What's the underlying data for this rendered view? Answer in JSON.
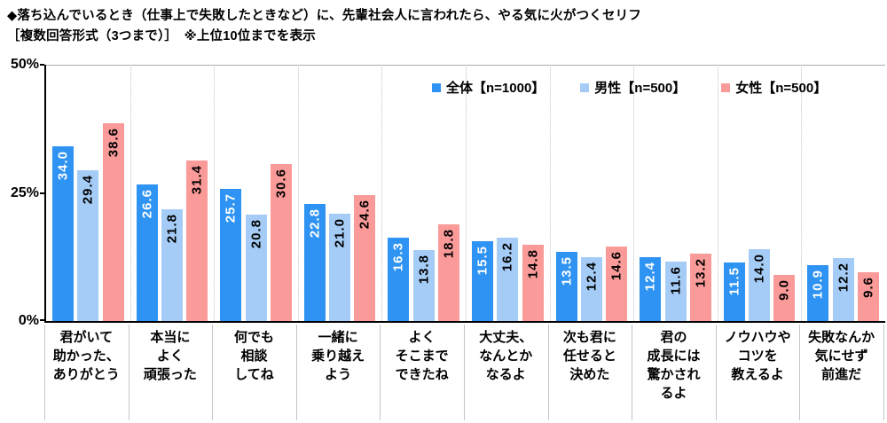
{
  "chart_data": {
    "type": "bar",
    "title": "◆落ち込んでいるとき（仕事上で失敗したときなど）に、先輩社会人に言われたら、やる気に火がつくセリフ",
    "subtitle": "［複数回答形式（3つまで）］　※上位10位までを表示",
    "ylim": [
      0,
      50
    ],
    "yticks": [
      "50%",
      "25%",
      "0%"
    ],
    "grid": "top 50% gridline only; dotted vertical separators between categories",
    "legend_position": "top-right inside plot",
    "value_label_format": "one decimal, rotated 90° reading bottom-to-top, inside bar top",
    "categories": [
      [
        "君がいて",
        "助かった、",
        "ありがとう"
      ],
      [
        "本当に",
        "よく",
        "頑張った"
      ],
      [
        "何でも",
        "相談",
        "してね"
      ],
      [
        "一緒に",
        "乗り越え",
        "よう"
      ],
      [
        "よく",
        "そこまで",
        "できたね"
      ],
      [
        "大丈夫、",
        "なんとか",
        "なるよ"
      ],
      [
        "次も君に",
        "任せると",
        "決めた"
      ],
      [
        "君の",
        "成長には",
        "驚かされ",
        "るよ"
      ],
      [
        "ノウハウや",
        "コツを",
        "教えるよ"
      ],
      [
        "失敗なんか",
        "気にせず",
        "前進だ"
      ]
    ],
    "series": [
      {
        "name": "全体【n=1000】",
        "color": "#2E93F2",
        "label_color": "#FFFFFF",
        "values": [
          34.0,
          26.6,
          25.7,
          22.8,
          16.3,
          15.5,
          13.5,
          12.4,
          11.5,
          10.9
        ]
      },
      {
        "name": "男性【n=500】",
        "color": "#A5CCF6",
        "label_color": "#000000",
        "values": [
          29.4,
          21.8,
          20.8,
          21.0,
          13.8,
          16.2,
          12.4,
          11.6,
          14.0,
          12.2
        ]
      },
      {
        "name": "女性【n=500】",
        "color": "#FA9A99",
        "label_color": "#000000",
        "values": [
          38.6,
          31.4,
          30.6,
          24.6,
          18.8,
          14.8,
          14.6,
          13.2,
          9.0,
          9.6
        ]
      }
    ]
  }
}
